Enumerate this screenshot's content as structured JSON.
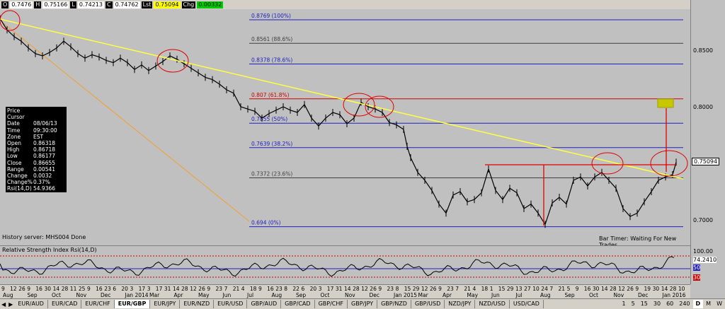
{
  "header": {
    "o_label": "O",
    "o_value": "0.7476",
    "h_label": "H",
    "h_value": "0.75166",
    "l_label": "L",
    "l_value": "0.74213",
    "c_label": "C",
    "c_value": "0.74762",
    "lst_label": "Lst",
    "lst_value": "0.75094",
    "chg_label": "Chg",
    "chg_value": "0.00332"
  },
  "price_axis": {
    "ticks": [
      "0.8500",
      "0.8000",
      "0.7500",
      "0.7000"
    ],
    "last_price": "0.75094",
    "rsi_ticks": [
      "100.00",
      "74.2410",
      "50",
      "30"
    ]
  },
  "fib_levels": [
    {
      "label": "0.8769 (100%)",
      "color": "#2020c0"
    },
    {
      "label": "0.8561 (88.6%)",
      "color": "#404040"
    },
    {
      "label": "0.8378 (78.6%)",
      "color": "#2020c0"
    },
    {
      "label": "0.807 (61.8%)",
      "color": "#d00000"
    },
    {
      "label": "0.7855 (50%)",
      "color": "#2020c0"
    },
    {
      "label": "0.7639 (38.2%)",
      "color": "#2020c0"
    },
    {
      "label": "0.7372 (23.6%)",
      "color": "#404040"
    },
    {
      "label": "0.694 (0%)",
      "color": "#2020c0"
    }
  ],
  "info_box": [
    {
      "k": "Price",
      "v": ""
    },
    {
      "k": "Cursor",
      "v": ""
    },
    {
      "k": "Date",
      "v": "08/06/13"
    },
    {
      "k": "Time",
      "v": "09:30:00"
    },
    {
      "k": "Zone",
      "v": "EST"
    },
    {
      "k": "Open",
      "v": "0.86318"
    },
    {
      "k": "High",
      "v": "0.86718"
    },
    {
      "k": "Low",
      "v": "0.86177"
    },
    {
      "k": "Close",
      "v": "0.86655"
    },
    {
      "k": "Range",
      "v": "0.00541"
    },
    {
      "k": "Change",
      "v": "0.0032"
    },
    {
      "k": "Change%",
      "v": "0.37%"
    },
    {
      "k": "Rsi(14,D)",
      "v": "54.9366"
    }
  ],
  "status": {
    "history": "History server: MHS004 Done",
    "bar_timer": "Bar Timer: Waiting For New Trades",
    "rsi_title": "Relative Strength Index Rsi(14,D)"
  },
  "x_axis": {
    "days": [
      "9",
      "12",
      "26",
      "9",
      "16",
      "30",
      "14",
      "28",
      "11",
      "25",
      "9",
      "16",
      "23",
      "6",
      "20",
      "3",
      "17",
      "3",
      "17",
      "31",
      "14",
      "28",
      "12",
      "26",
      "9",
      "23",
      "7",
      "21",
      "4",
      "18",
      "9",
      "16",
      "23",
      "8",
      "22",
      "6",
      "20",
      "3",
      "17",
      "31",
      "14",
      "28",
      "12",
      "26",
      "9",
      "23",
      "8",
      "15",
      "29",
      "12",
      "26",
      "9",
      "23",
      "7",
      "21",
      "4",
      "18",
      "1",
      "15",
      "29",
      "13",
      "27",
      "10",
      "24",
      "7",
      "21",
      "5",
      "9",
      "16",
      "30",
      "14",
      "28",
      "12",
      "26",
      "9",
      "19",
      "30",
      "14",
      "28",
      "10"
    ],
    "months": [
      "Aug",
      "Sep",
      "Oct",
      "Nov",
      "Dec",
      "Jan 2014",
      "Mar",
      "Apr",
      "May",
      "Jun",
      "Jul",
      "Aug",
      "Sep",
      "Oct",
      "Nov",
      "Dec",
      "Jan 2015",
      "Mar",
      "Apr",
      "May",
      "Jun",
      "Jul",
      "Aug",
      "Sep",
      "Oct",
      "Nov",
      "Dec",
      "Jan 2016"
    ]
  },
  "tabs": [
    "EUR/AUD",
    "EUR/CAD",
    "EUR/CHF",
    "EUR/GBP",
    "EUR/JPY",
    "EUR/NZD",
    "EUR/USD",
    "GBP/AUD",
    "GBP/CAD",
    "GBP/CHF",
    "GBP/JPY",
    "GBP/NZD",
    "GBP/USD",
    "NZD/JPY",
    "NZD/USD",
    "USD/CAD"
  ],
  "active_tab": "EUR/GBP",
  "timeframes": [
    "1",
    "5",
    "15",
    "30",
    "60",
    "240",
    "D",
    "M",
    "W"
  ],
  "active_timeframe": "D",
  "colors": {
    "trendline": "#ffff40",
    "fib_blue": "#2020c0",
    "fib_red": "#d00000",
    "annotation": "#e00000",
    "candle": "#000000",
    "retracement": "#f0a030"
  }
}
